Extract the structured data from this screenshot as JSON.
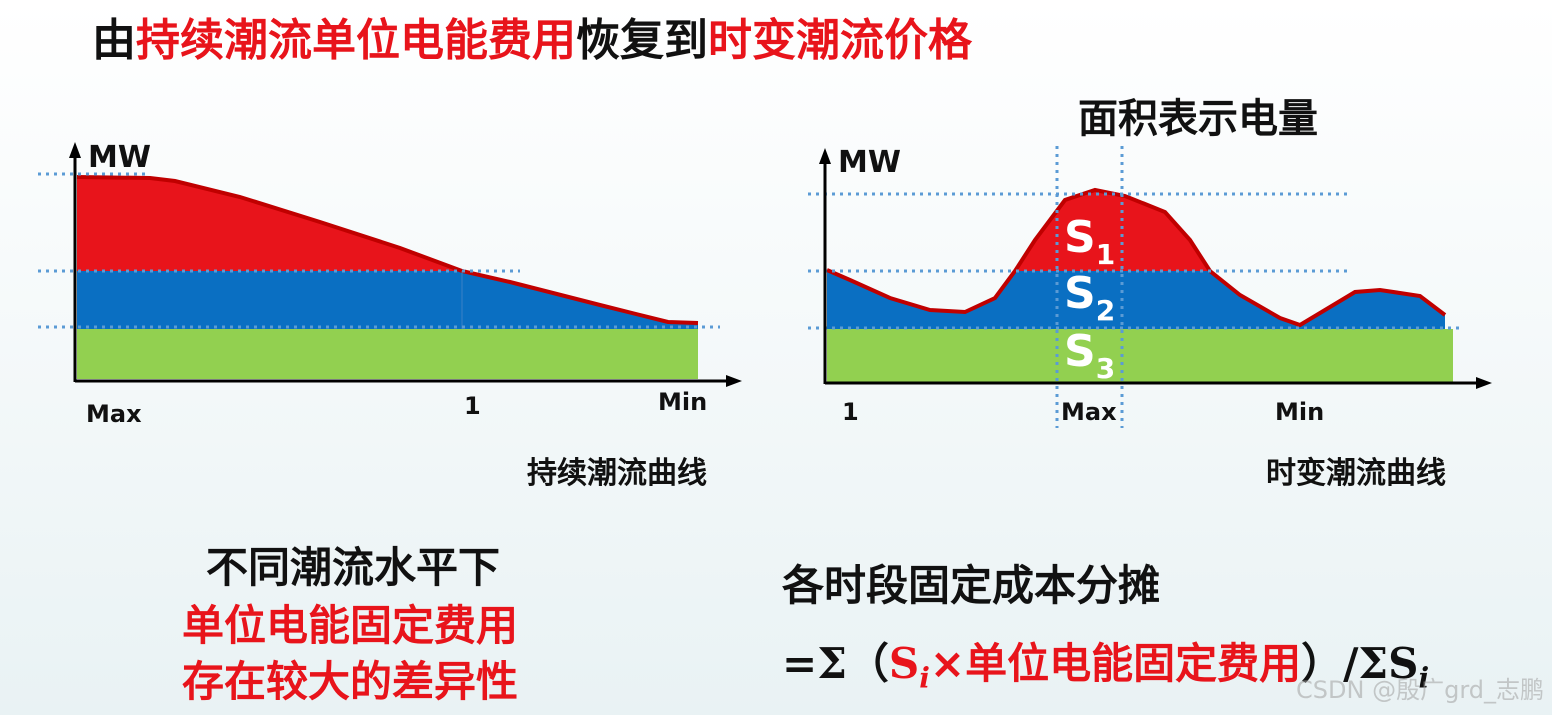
{
  "title": {
    "part1": "由",
    "part2": "持续潮流单位电能费用",
    "part3": "恢复到",
    "part4": "时变潮流价格"
  },
  "left_chart": {
    "y_label": "MW",
    "x_ticks": [
      "Max",
      "1",
      "Min"
    ],
    "caption": "持续潮流曲线"
  },
  "right_chart": {
    "header": "面积表示电量",
    "y_label": "MW",
    "x_ticks": [
      "1",
      "Max",
      "Min"
    ],
    "caption": "时变潮流曲线",
    "area_labels": [
      {
        "base": "S",
        "sub": "1"
      },
      {
        "base": "S",
        "sub": "2"
      },
      {
        "base": "S",
        "sub": "3"
      }
    ]
  },
  "bottom_left": {
    "line1": "不同潮流水平下",
    "line2": "单位电能固定费用",
    "line3": "存在较大的差异性"
  },
  "bottom_right": {
    "line1": "各时段固定成本分摊",
    "formula": {
      "prefix": "=Σ（",
      "si_base": "S",
      "si_sub": "i",
      "middle": "×单位电能固定费用",
      "suffix": "）/ΣS",
      "suffix_sub": "i"
    }
  },
  "watermark": "CSDN @殷广grd_志鹏",
  "colors": {
    "red": "#e8141b",
    "blue": "#0a6fc2",
    "green": "#92d050",
    "dotted": "#5b9bd5"
  }
}
